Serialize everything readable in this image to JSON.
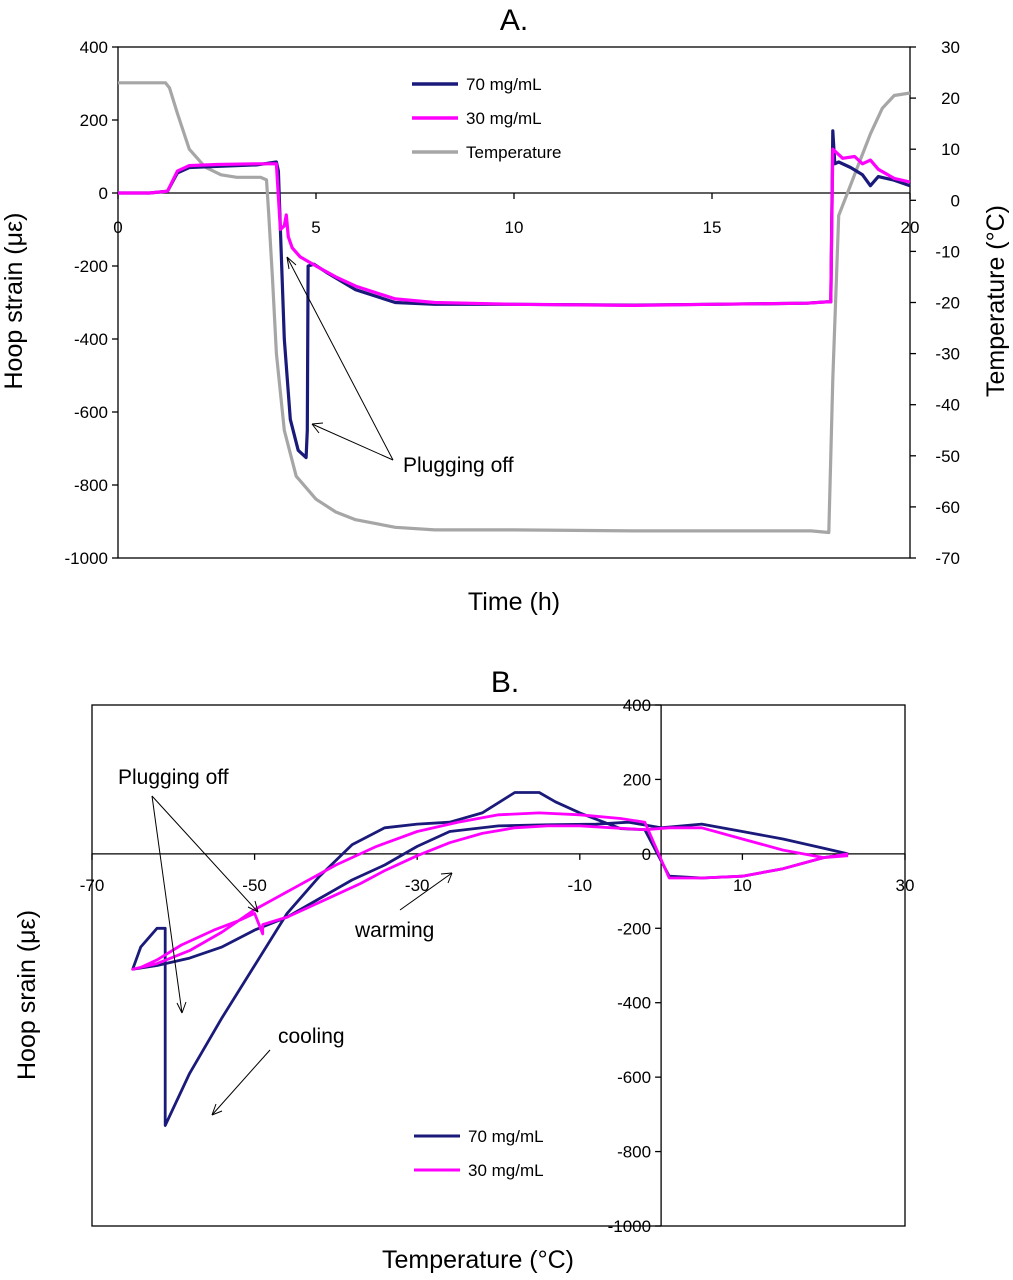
{
  "colors": {
    "series_70": "#1a1a7a",
    "series_30": "#ff00ff",
    "temperature": "#a6a6a6",
    "axis": "#000000"
  },
  "chart_data": [
    {
      "type": "line",
      "title": "A.",
      "xlabel": "Time (h)",
      "ylabel": "Hoop strain  (με)",
      "y2label": "Temperature (°C)",
      "xlim": [
        0,
        20
      ],
      "ylim": [
        -1000,
        400
      ],
      "y2lim": [
        -70,
        30
      ],
      "xticks": [
        0,
        5,
        10,
        15,
        20
      ],
      "xtick_labels": [
        "0",
        "5",
        "10",
        "15",
        "20"
      ],
      "yticks": [
        400,
        200,
        0,
        -200,
        -400,
        -600,
        -800,
        -1000
      ],
      "ytick_labels": [
        "400",
        "200",
        "0",
        "-200",
        "-400",
        "-600",
        "-800",
        "-1000"
      ],
      "y2ticks": [
        30,
        20,
        10,
        0,
        -10,
        -20,
        -30,
        -40,
        -50,
        -60,
        -70
      ],
      "y2tick_labels": [
        "30",
        "20",
        "10",
        "0",
        "-10",
        "-20",
        "-30",
        "-40",
        "-50",
        "-60",
        "-70"
      ],
      "legend": [
        "70 mg/mL",
        "30 mg/mL",
        "Temperature"
      ],
      "legend_position": "top-center",
      "annotations": [
        "Plugging off"
      ],
      "series": [
        {
          "name": "70 mg/mL",
          "axis": "left",
          "x": [
            0,
            0.8,
            1.25,
            1.5,
            1.8,
            2.5,
            3.5,
            4.0,
            4.05,
            4.1,
            4.2,
            4.35,
            4.55,
            4.75,
            4.78,
            4.8,
            4.95,
            5.3,
            6.0,
            7.0,
            8.0,
            10.0,
            13.0,
            15.0,
            17.4,
            17.9,
            18.0,
            18.05,
            18.1,
            18.2,
            18.5,
            18.8,
            19.0,
            19.2,
            19.6,
            20.0
          ],
          "y": [
            0,
            0,
            5,
            55,
            70,
            73,
            77,
            85,
            60,
            -100,
            -400,
            -620,
            -705,
            -725,
            -650,
            -200,
            -195,
            -220,
            -265,
            -300,
            -305,
            -305,
            -307,
            -305,
            -302,
            -298,
            -298,
            170,
            80,
            85,
            70,
            50,
            20,
            45,
            35,
            20
          ]
        },
        {
          "name": "30 mg/mL",
          "axis": "left",
          "x": [
            0,
            0.8,
            1.25,
            1.5,
            1.8,
            2.5,
            3.5,
            4.0,
            4.1,
            4.2,
            4.25,
            4.3,
            4.4,
            4.6,
            5.0,
            5.5,
            6.0,
            7.0,
            8.0,
            10.0,
            13.0,
            15.0,
            17.4,
            17.95,
            18.0,
            18.05,
            18.3,
            18.6,
            18.8,
            19.0,
            19.2,
            19.6,
            20.0
          ],
          "y": [
            0,
            0,
            5,
            60,
            75,
            78,
            80,
            80,
            -100,
            -90,
            -60,
            -120,
            -150,
            -175,
            -200,
            -230,
            -255,
            -290,
            -300,
            -305,
            -308,
            -305,
            -302,
            -298,
            -298,
            120,
            95,
            100,
            80,
            90,
            65,
            40,
            30
          ]
        },
        {
          "name": "Temperature",
          "axis": "right",
          "x": [
            0,
            1.2,
            1.3,
            1.5,
            1.8,
            2.2,
            2.6,
            3.0,
            3.6,
            3.75,
            3.8,
            3.9,
            4.0,
            4.2,
            4.5,
            5.0,
            5.5,
            6.0,
            7.0,
            8.0,
            10.0,
            13.0,
            16.0,
            17.5,
            17.95,
            18.05,
            18.2,
            18.5,
            18.7,
            19.0,
            19.3,
            19.6,
            20.0
          ],
          "y": [
            23,
            23,
            22,
            17,
            10,
            6.5,
            5,
            4.5,
            4.5,
            4,
            -2,
            -15,
            -30,
            -45,
            -54,
            -58.5,
            -61,
            -62.5,
            -64,
            -64.5,
            -64.5,
            -64.7,
            -64.7,
            -64.7,
            -65,
            -35,
            -3,
            3,
            7,
            13,
            18,
            20.5,
            21
          ]
        }
      ]
    },
    {
      "type": "line",
      "title": "B.",
      "xlabel": "Temperature (°C)",
      "ylabel": "Hoop srain (με)",
      "xlim": [
        -70,
        30
      ],
      "ylim": [
        -1000,
        400
      ],
      "xticks": [
        -70,
        -50,
        -30,
        -10,
        10,
        30
      ],
      "xtick_labels": [
        "-70",
        "-50",
        "-30",
        "-10",
        "10",
        "30"
      ],
      "yticks": [
        400,
        200,
        0,
        -200,
        -400,
        -600,
        -800,
        -1000
      ],
      "ytick_labels": [
        "400",
        "200",
        "0",
        "-200",
        "-400",
        "-600",
        "-800",
        "-1000"
      ],
      "legend": [
        "70 mg/mL",
        "30 mg/mL"
      ],
      "legend_position": "bottom-center",
      "annotations": [
        "Plugging off",
        "warming",
        "cooling"
      ],
      "series": [
        {
          "name": "70 mg/mL",
          "x": [
            23,
            20,
            15,
            10,
            5,
            1,
            -2,
            -5,
            -10,
            -13,
            -15,
            -18,
            -22,
            -26,
            -30,
            -34,
            -38,
            -42,
            -46,
            -50,
            -54,
            -58,
            -61,
            -61,
            -62,
            -64,
            -65,
            -62,
            -58,
            -54,
            -50,
            -46,
            -42,
            -38,
            -34,
            -30,
            -26,
            -20,
            -14,
            -8,
            -4,
            0,
            5,
            10,
            15,
            20,
            23
          ],
          "y": [
            0,
            -10,
            -40,
            -60,
            -65,
            -60,
            65,
            68,
            110,
            140,
            165,
            165,
            110,
            85,
            80,
            70,
            25,
            -60,
            -160,
            -300,
            -440,
            -590,
            -730,
            -200,
            -200,
            -250,
            -310,
            -300,
            -280,
            -250,
            -205,
            -170,
            -120,
            -70,
            -30,
            20,
            60,
            75,
            78,
            80,
            85,
            70,
            80,
            60,
            40,
            15,
            0
          ]
        },
        {
          "name": "30 mg/mL",
          "x": [
            23,
            20,
            15,
            10,
            5,
            1,
            -2,
            -5,
            -10,
            -15,
            -20,
            -25,
            -30,
            -35,
            -40,
            -45,
            -50,
            -54,
            -58,
            -62,
            -65,
            -64,
            -62,
            -59,
            -55,
            -52,
            -50,
            -49,
            -49,
            -46,
            -43,
            -40,
            -37,
            -34,
            -30,
            -26,
            -22,
            -18,
            -14,
            -10,
            -6,
            -2,
            1,
            5,
            10,
            15,
            20,
            23
          ],
          "y": [
            0,
            -10,
            -40,
            -60,
            -65,
            -65,
            85,
            95,
            105,
            110,
            105,
            85,
            60,
            20,
            -30,
            -90,
            -150,
            -210,
            -260,
            -295,
            -310,
            -305,
            -285,
            -245,
            -205,
            -180,
            -160,
            -215,
            -190,
            -170,
            -140,
            -110,
            -80,
            -45,
            -5,
            30,
            55,
            70,
            75,
            75,
            70,
            65,
            70,
            70,
            40,
            10,
            -10,
            -5
          ]
        }
      ]
    }
  ]
}
